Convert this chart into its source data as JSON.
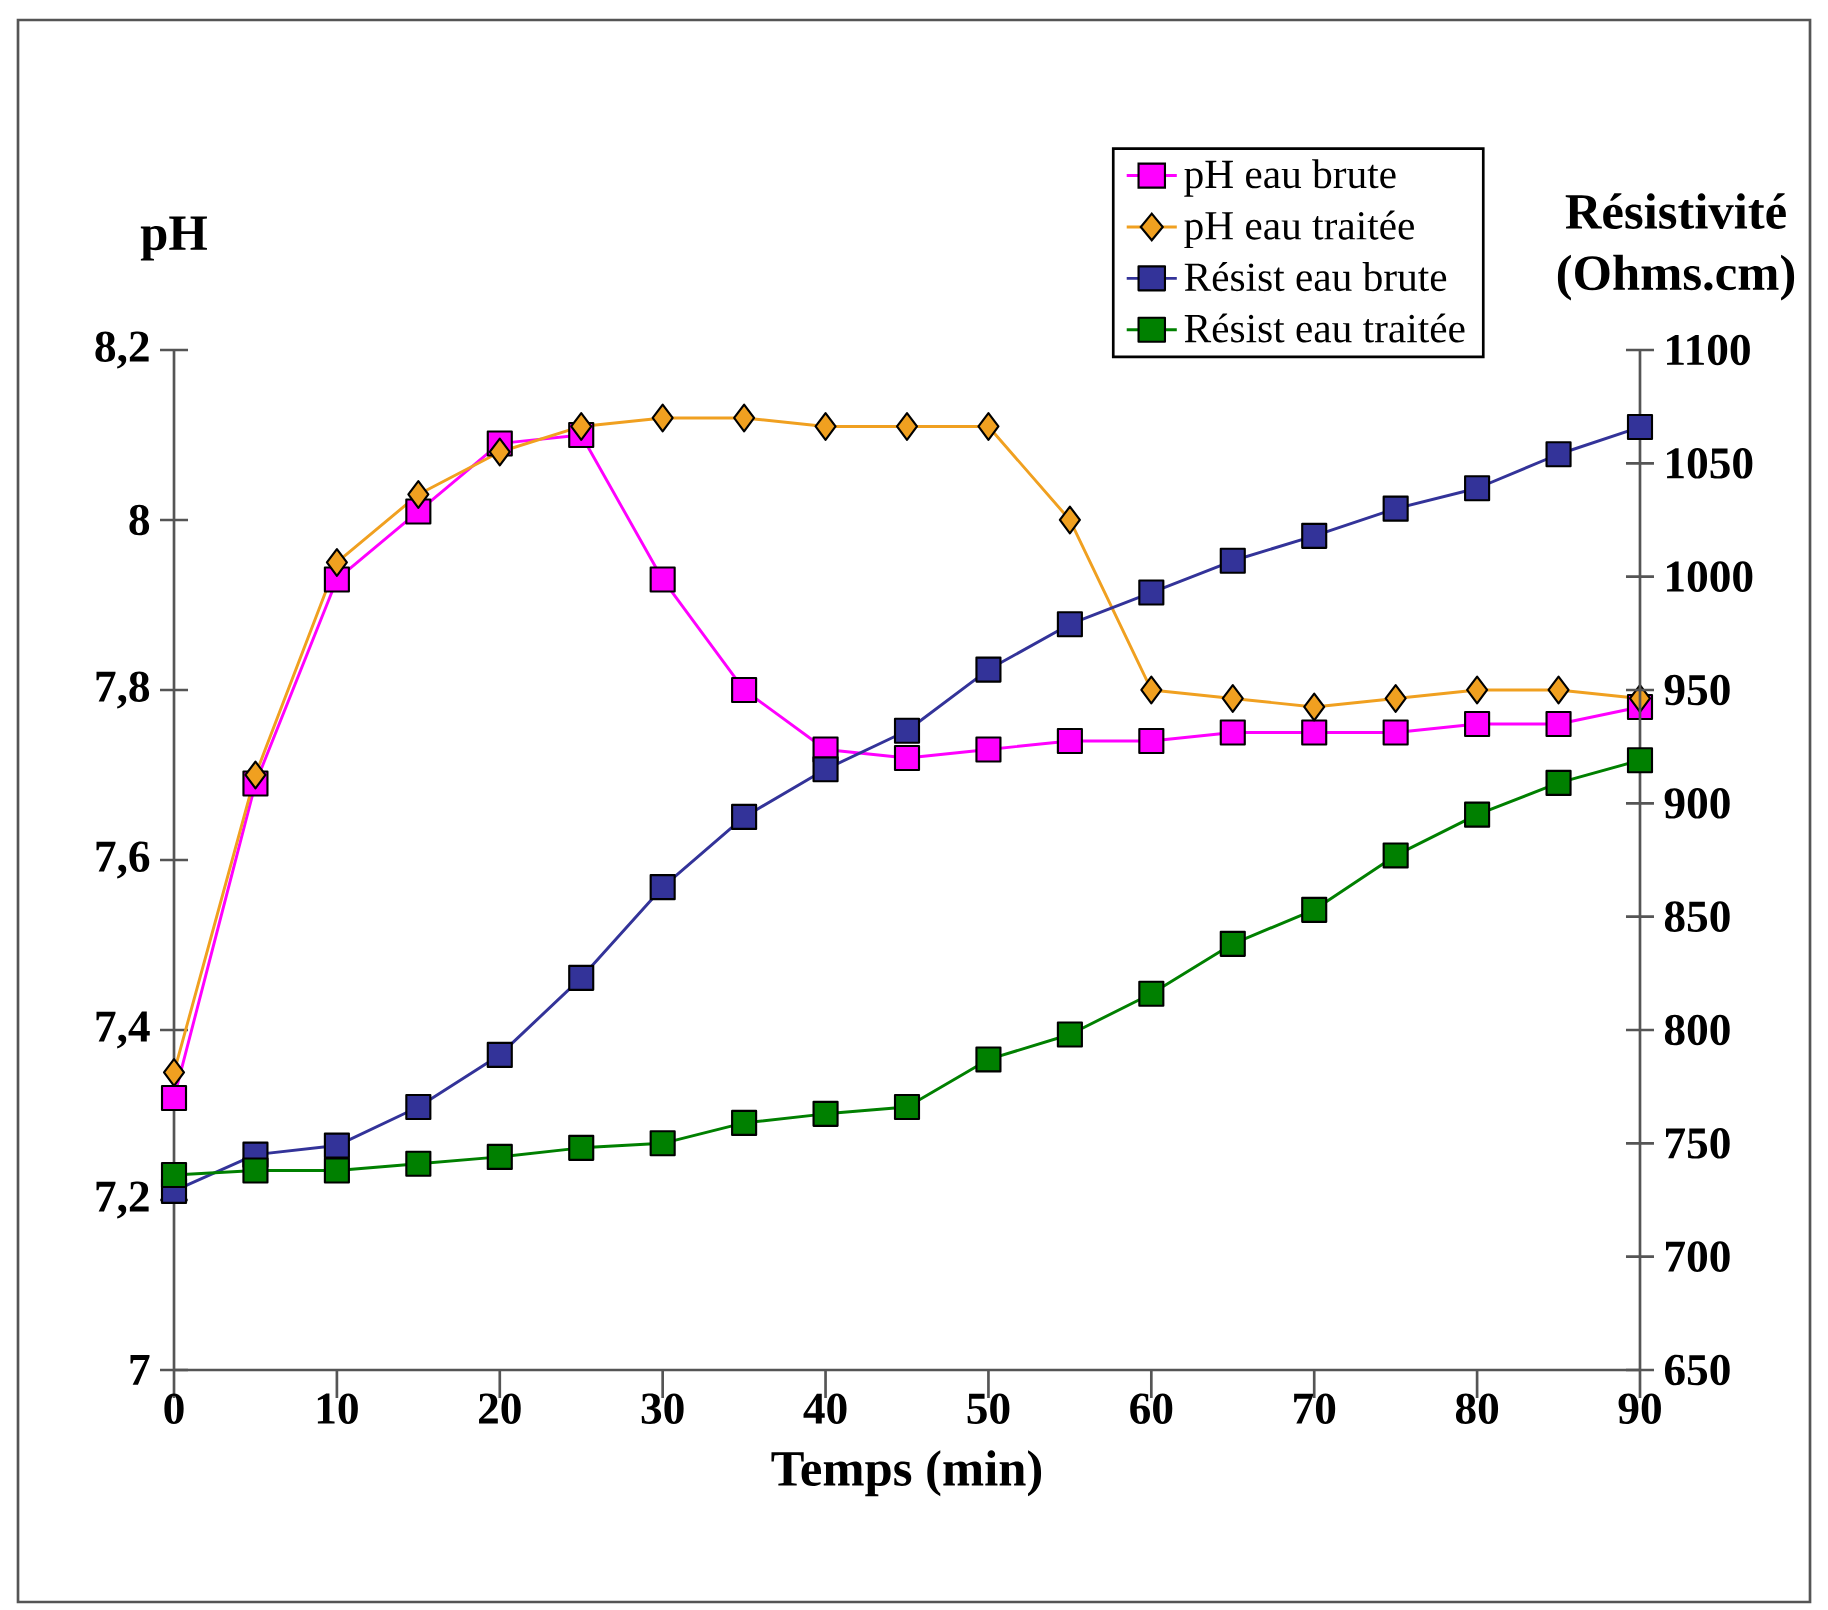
{
  "chart_data": {
    "type": "line",
    "xlabel": "Temps (min)",
    "ylabel": "pH",
    "y2label": "Résistivité (Ohms.cm)",
    "x": [
      0,
      5,
      10,
      15,
      20,
      25,
      30,
      35,
      40,
      45,
      50,
      55,
      60,
      65,
      70,
      75,
      80,
      85,
      90
    ],
    "xlim": [
      0,
      90
    ],
    "xticks": [
      0,
      10,
      20,
      30,
      40,
      50,
      60,
      70,
      80,
      90
    ],
    "ylim": [
      7,
      8.2
    ],
    "yticks": [
      7,
      {
        "value": 7.2,
        "label": "7,2"
      },
      {
        "value": 7.4,
        "label": "7,4"
      },
      {
        "value": 7.6,
        "label": "7,6"
      },
      {
        "value": 7.8,
        "label": "7,8"
      },
      8,
      {
        "value": 8.2,
        "label": "8,2"
      }
    ],
    "y2lim": [
      650,
      1100
    ],
    "y2ticks": [
      650,
      700,
      750,
      800,
      850,
      900,
      950,
      1000,
      1050,
      1100
    ],
    "legend": "top right",
    "series": [
      {
        "name": "pH eau brute",
        "color": "#ff00ff",
        "marker": "square",
        "values": [
          7.32,
          7.69,
          7.93,
          8.01,
          8.09,
          8.1,
          7.93,
          7.8,
          7.73,
          7.72,
          7.73,
          7.74,
          7.74,
          7.75,
          7.75,
          7.75,
          7.76,
          7.76,
          7.78
        ]
      },
      {
        "name": "pH eau traitée",
        "color": "#f0a020",
        "marker": "diamond",
        "values": [
          7.35,
          7.7,
          7.95,
          8.03,
          8.08,
          8.11,
          8.12,
          8.12,
          8.11,
          8.11,
          8.11,
          8.0,
          7.8,
          7.79,
          7.78,
          7.79,
          7.8,
          7.8,
          7.79
        ]
      },
      {
        "name": "Résist eau brute",
        "color": "#333399",
        "marker": "square",
        "axis": "y2",
        "values": [
          729,
          745,
          749,
          766,
          789,
          823,
          863,
          894,
          915,
          932,
          959,
          979,
          993,
          1007,
          1018,
          1030,
          1039,
          1054,
          1066
        ]
      },
      {
        "name": "Résist eau traitée",
        "color": "#008000",
        "marker": "square",
        "axis": "y2",
        "values": [
          736,
          738,
          738,
          741,
          744,
          748,
          750,
          759,
          763,
          766,
          787,
          798,
          816,
          838,
          853,
          877,
          895,
          909,
          919
        ]
      }
    ]
  }
}
